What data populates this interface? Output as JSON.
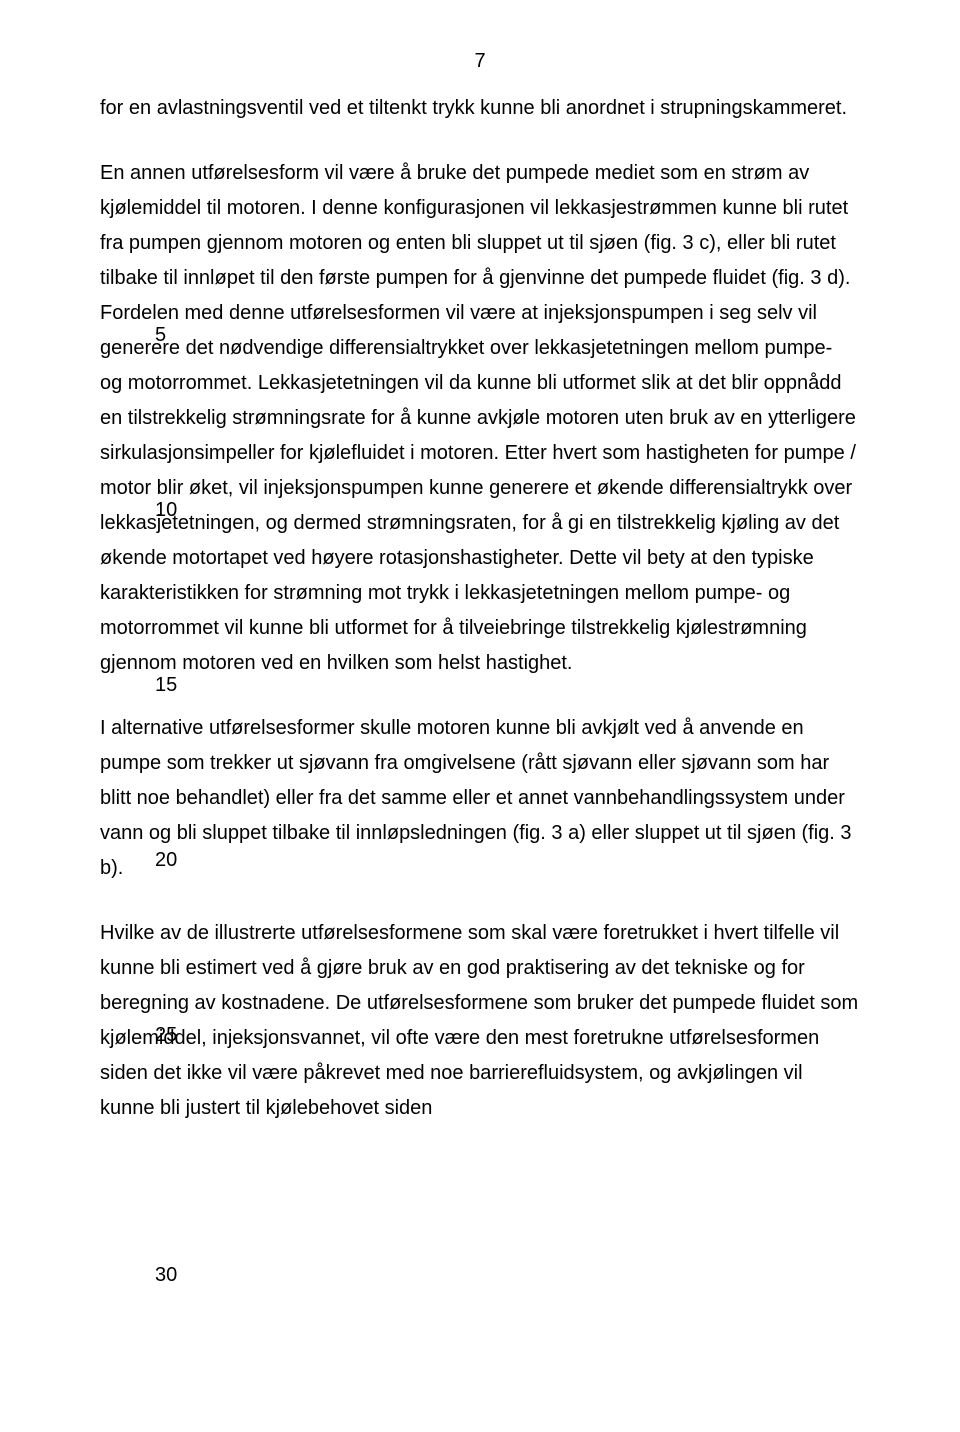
{
  "pageNumber": "7",
  "lineNumbers": {
    "n5": "5",
    "n10": "10",
    "n15": "15",
    "n20": "20",
    "n25": "25",
    "n30": "30"
  },
  "lineNumberPositions": {
    "n5": 227,
    "n10": 402,
    "n15": 577,
    "n20": 752,
    "n25": 927,
    "n30": 1167
  },
  "paragraphs": {
    "p1": "for en avlastningsventil ved et tiltenkt trykk kunne bli anordnet i strupningskammeret.",
    "p2": "En annen utførelsesform vil være å bruke det pumpede mediet som en strøm av kjølemiddel til motoren. I denne konfigurasjonen vil lekkasjestrømmen kunne bli rutet fra pumpen gjennom motoren og enten bli sluppet ut til sjøen (fig. 3 c), eller bli rutet tilbake til innløpet til den første pumpen for å gjenvinne det pumpede fluidet (fig. 3 d). Fordelen med denne utførelsesformen vil være at injeksjonspumpen i seg selv vil generere det nødvendige differensialtrykket over lekkasjetetningen mellom pumpe- og motorrommet. Lekkasjetetningen vil da kunne bli utformet slik at det blir oppnådd en tilstrekkelig strømningsrate for å kunne avkjøle motoren uten bruk av en ytterligere sirkulasjonsimpeller for kjølefluidet i motoren. Etter hvert som hastigheten for pumpe / motor blir øket, vil injeksjonspumpen kunne generere et økende differensialtrykk over lekkasjetetningen, og dermed strømningsraten, for å gi en tilstrekkelig kjøling av det økende motortapet ved høyere rotasjonshastigheter. Dette vil bety at den typiske karakteristikken for strømning mot trykk i lekkasjetetningen mellom pumpe- og motorrommet vil kunne bli utformet for å tilveiebringe tilstrekkelig kjølestrømning gjennom motoren ved en hvilken som helst hastighet.",
    "p3": "I alternative utførelsesformer skulle motoren kunne bli avkjølt ved å anvende en pumpe som trekker ut sjøvann fra omgivelsene (rått sjøvann eller sjøvann som har blitt noe behandlet) eller fra det samme eller et annet vannbehandlingssystem under vann og bli sluppet tilbake til innløpsledningen (fig. 3 a) eller sluppet ut til sjøen (fig. 3 b).",
    "p4": "Hvilke av de illustrerte utførelsesformene som skal være foretrukket i hvert tilfelle vil kunne bli estimert ved å gjøre bruk av en god praktisering av det tekniske og for beregning av kostnadene. De utførelsesformene som bruker det pumpede fluidet som kjølemiddel, injeksjonsvannet, vil ofte være den mest foretrukne utførelsesformen siden det ikke vil være påkrevet med noe barrierefluidsystem, og avkjølingen vil kunne bli justert til kjølebehovet siden"
  },
  "style": {
    "backgroundColor": "#ffffff",
    "textColor": "#000000",
    "fontFamily": "Arial, Helvetica, sans-serif",
    "fontSize": 20,
    "lineHeight": 1.75,
    "pageWidth": 960,
    "pageHeight": 1432
  }
}
